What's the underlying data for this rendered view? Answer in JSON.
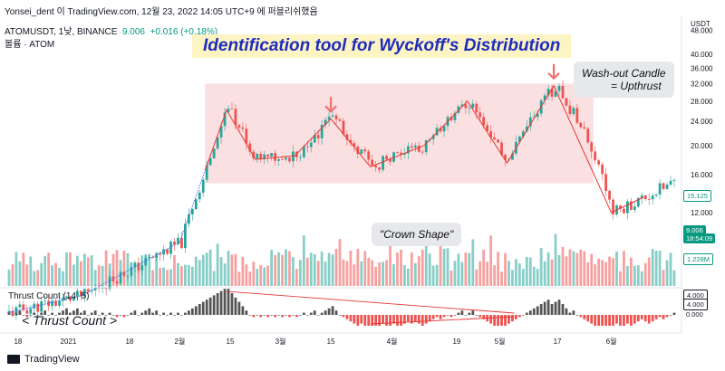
{
  "header": {
    "author_line": "Yonsei_dent 이 TradingView.com, 12월 23, 2022 14:05 UTC+9 에 퍼블리쉬했음"
  },
  "legend": {
    "symbol": "ATOMUSDT, 1낮, BINANCE",
    "price": "9.006",
    "change": "+0.016 (+0.18%)",
    "volume_label": "볼륨 · ATOM"
  },
  "title": "Identification tool for Wyckoff's Distribution",
  "annotations": {
    "washout_line1": "Wash-out Candle",
    "washout_line2": "= Upthrust",
    "crown": "\"Crown Shape\"",
    "thrust": "< Thrust Count >"
  },
  "indicator": {
    "label": "Thrust Count (14, 5)",
    "value_a": "4.000",
    "value_b": "4.000",
    "zero": "0.000"
  },
  "price_axis": {
    "unit": "USDT",
    "ticks": [
      "48.000",
      "40.000",
      "36.000",
      "32.000",
      "28.000",
      "24.000",
      "20.000",
      "16.000",
      "12.000"
    ],
    "tick_values": [
      48,
      40,
      36,
      32,
      28,
      24,
      20,
      16,
      12
    ]
  },
  "tags": {
    "current_price": "15.125",
    "last_price": "9.006",
    "countdown": "18:54:09",
    "volume_value": "1.228M"
  },
  "footer": {
    "brand": "TradingView"
  },
  "colors": {
    "up": "#26a69a",
    "down": "#ef5350",
    "zone": "#fadadd",
    "arrow": "#f06f6f",
    "zigzag": "#e53935",
    "line_blue": "#4a6cf7"
  },
  "chart_data": {
    "type": "candlestick",
    "x_ticks": [
      "18",
      "2021",
      "18",
      "2월",
      "15",
      "3월",
      "15",
      "4월",
      "19",
      "5월",
      "17",
      "6월"
    ],
    "price_path": [
      {
        "t": "2020-12-15",
        "price": 5.6
      },
      {
        "t": "2021-01-05",
        "price": 6.4
      },
      {
        "t": "2021-01-20",
        "price": 8.0
      },
      {
        "t": "2021-02-01",
        "price": 9.6
      },
      {
        "t": "2021-02-08",
        "price": 16.5
      },
      {
        "t": "2021-02-14",
        "price": 26.2
      },
      {
        "t": "2021-02-22",
        "price": 18.0
      },
      {
        "t": "2021-03-05",
        "price": 18.5
      },
      {
        "t": "2021-03-15",
        "price": 24.5
      },
      {
        "t": "2021-03-26",
        "price": 17.0
      },
      {
        "t": "2021-04-10",
        "price": 20.0
      },
      {
        "t": "2021-04-22",
        "price": 28.0
      },
      {
        "t": "2021-05-03",
        "price": 17.5
      },
      {
        "t": "2021-05-16",
        "price": 31.5
      },
      {
        "t": "2021-06-01",
        "price": 12.0
      },
      {
        "t": "2021-06-10",
        "price": 13.5
      },
      {
        "t": "2021-06-18",
        "price": 15.1
      }
    ],
    "distribution_zone": {
      "from": "2021-02-08",
      "to": "2021-05-27",
      "low": 15.0,
      "high": 32.0
    },
    "volume_range_m": [
      0.5,
      4.0
    ]
  }
}
